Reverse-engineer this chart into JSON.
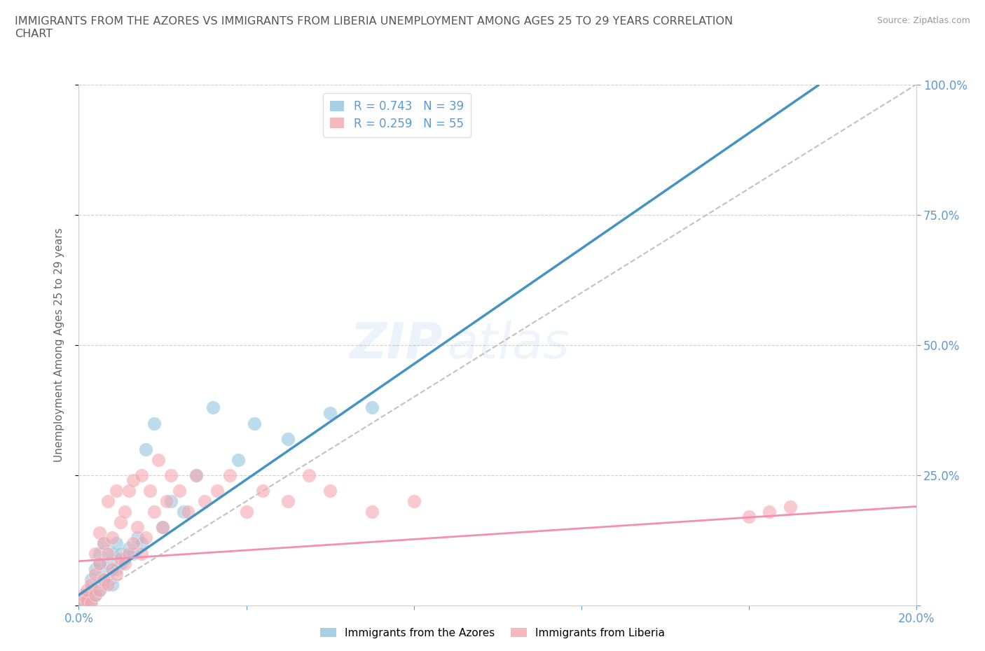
{
  "title": "IMMIGRANTS FROM THE AZORES VS IMMIGRANTS FROM LIBERIA UNEMPLOYMENT AMONG AGES 25 TO 29 YEARS CORRELATION\nCHART",
  "source": "Source: ZipAtlas.com",
  "ylabel": "Unemployment Among Ages 25 to 29 years",
  "xmin": 0.0,
  "xmax": 0.2,
  "ymin": 0.0,
  "ymax": 1.0,
  "xticks": [
    0.0,
    0.04,
    0.08,
    0.12,
    0.16,
    0.2
  ],
  "xtick_labels": [
    "0.0%",
    "",
    "",
    "",
    "",
    "20.0%"
  ],
  "yticks": [
    0.0,
    0.25,
    0.5,
    0.75,
    1.0
  ],
  "ytick_labels": [
    "",
    "25.0%",
    "50.0%",
    "75.0%",
    "100.0%"
  ],
  "azores_R": 0.743,
  "azores_N": 39,
  "liberia_R": 0.259,
  "liberia_N": 55,
  "azores_color": "#92c5de",
  "liberia_color": "#f4a6b0",
  "azores_line_color": "#4393c3",
  "liberia_line_color": "#f48fb1",
  "ref_line_color": "#bbbbbb",
  "background_color": "#ffffff",
  "watermark_text": "ZIP",
  "watermark_text2": "atlas",
  "azores_line_x0": 0.0,
  "azores_line_y0": 0.02,
  "azores_line_x1": 0.148,
  "azores_line_y1": 0.84,
  "liberia_line_x0": 0.0,
  "liberia_line_y0": 0.085,
  "liberia_line_x1": 0.2,
  "liberia_line_y1": 0.19,
  "azores_x": [
    0.001,
    0.001,
    0.002,
    0.002,
    0.003,
    0.003,
    0.003,
    0.004,
    0.004,
    0.005,
    0.005,
    0.005,
    0.006,
    0.006,
    0.007,
    0.007,
    0.008,
    0.008,
    0.009,
    0.009,
    0.01,
    0.01,
    0.011,
    0.012,
    0.013,
    0.014,
    0.015,
    0.016,
    0.018,
    0.02,
    0.022,
    0.025,
    0.028,
    0.032,
    0.038,
    0.042,
    0.05,
    0.06,
    0.07
  ],
  "azores_y": [
    0.005,
    0.01,
    0.005,
    0.02,
    0.01,
    0.03,
    0.05,
    0.02,
    0.07,
    0.03,
    0.08,
    0.1,
    0.05,
    0.12,
    0.06,
    0.08,
    0.04,
    0.1,
    0.07,
    0.12,
    0.08,
    0.1,
    0.09,
    0.11,
    0.1,
    0.13,
    0.12,
    0.3,
    0.35,
    0.15,
    0.2,
    0.18,
    0.25,
    0.38,
    0.28,
    0.35,
    0.32,
    0.37,
    0.38
  ],
  "liberia_x": [
    0.001,
    0.001,
    0.002,
    0.002,
    0.003,
    0.003,
    0.004,
    0.004,
    0.004,
    0.005,
    0.005,
    0.005,
    0.006,
    0.006,
    0.007,
    0.007,
    0.007,
    0.008,
    0.008,
    0.009,
    0.009,
    0.01,
    0.01,
    0.011,
    0.011,
    0.012,
    0.012,
    0.013,
    0.013,
    0.014,
    0.015,
    0.015,
    0.016,
    0.017,
    0.018,
    0.019,
    0.02,
    0.021,
    0.022,
    0.024,
    0.026,
    0.028,
    0.03,
    0.033,
    0.036,
    0.04,
    0.044,
    0.05,
    0.055,
    0.06,
    0.07,
    0.08,
    0.16,
    0.165,
    0.17
  ],
  "liberia_y": [
    0.005,
    0.02,
    0.01,
    0.03,
    0.005,
    0.04,
    0.02,
    0.06,
    0.1,
    0.03,
    0.08,
    0.14,
    0.05,
    0.12,
    0.04,
    0.1,
    0.2,
    0.07,
    0.13,
    0.06,
    0.22,
    0.09,
    0.16,
    0.08,
    0.18,
    0.1,
    0.22,
    0.12,
    0.24,
    0.15,
    0.1,
    0.25,
    0.13,
    0.22,
    0.18,
    0.28,
    0.15,
    0.2,
    0.25,
    0.22,
    0.18,
    0.25,
    0.2,
    0.22,
    0.25,
    0.18,
    0.22,
    0.2,
    0.25,
    0.22,
    0.18,
    0.2,
    0.17,
    0.18,
    0.19
  ]
}
